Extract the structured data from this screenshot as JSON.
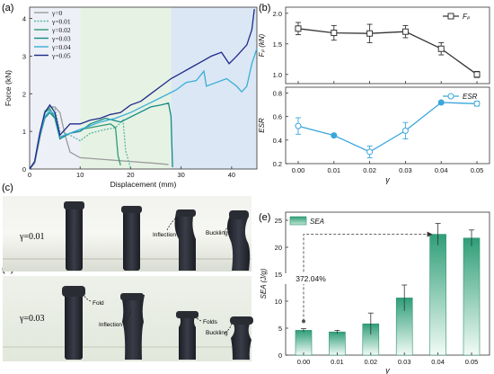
{
  "panel_labels": {
    "a": "(a)",
    "b": "(b)",
    "c": "(c)",
    "d": "(d)",
    "e": "(e)"
  },
  "chart_data": [
    {
      "id": "a",
      "type": "line",
      "xlabel": "Displacement (mm)",
      "ylabel": "Force (kN)",
      "xlim": [
        0,
        45
      ],
      "ylim": [
        0,
        4.3
      ],
      "xticks": [
        0,
        10,
        20,
        30,
        40
      ],
      "yticks": [
        0,
        1,
        2,
        3,
        4
      ],
      "legend_position": "top-left",
      "regions": [
        {
          "x": [
            0,
            10
          ],
          "color": "#eef0f7"
        },
        {
          "x": [
            10,
            28
          ],
          "color": "#e6f2e4"
        },
        {
          "x": [
            28,
            45
          ],
          "color": "#dbe7f4"
        }
      ],
      "series": [
        {
          "name": "γ=0",
          "color": "#9a9a9a",
          "dashed": false,
          "points": [
            [
              0,
              0
            ],
            [
              1,
              0.15
            ],
            [
              2,
              0.8
            ],
            [
              3,
              1.5
            ],
            [
              4,
              1.65
            ],
            [
              5,
              1.65
            ],
            [
              6,
              1.5
            ],
            [
              7,
              0.9
            ],
            [
              8,
              0.45
            ],
            [
              10,
              0.3
            ],
            [
              15,
              0.25
            ],
            [
              20,
              0.2
            ],
            [
              25,
              0.15
            ],
            [
              27.5,
              0.12
            ]
          ]
        },
        {
          "name": "γ=0.01",
          "color": "#5ab8a2",
          "dashed": true,
          "points": [
            [
              0,
              0
            ],
            [
              1,
              0.2
            ],
            [
              2,
              0.9
            ],
            [
              3,
              1.55
            ],
            [
              4,
              1.65
            ],
            [
              5,
              1.6
            ],
            [
              6,
              1.0
            ],
            [
              8,
              0.9
            ],
            [
              10,
              0.75
            ],
            [
              12,
              0.95
            ],
            [
              15,
              1.05
            ],
            [
              17,
              1.1
            ],
            [
              18.5,
              1.3
            ],
            [
              19,
              0.5
            ],
            [
              20,
              0.02
            ]
          ]
        },
        {
          "name": "γ=0.02",
          "color": "#2e9b76",
          "dashed": false,
          "points": [
            [
              0,
              0
            ],
            [
              1,
              0.2
            ],
            [
              2,
              0.9
            ],
            [
              3,
              1.5
            ],
            [
              4,
              1.6
            ],
            [
              5,
              1.35
            ],
            [
              6,
              0.85
            ],
            [
              8,
              0.95
            ],
            [
              10,
              1.05
            ],
            [
              12,
              1.1
            ],
            [
              14,
              1.15
            ],
            [
              16,
              1.2
            ],
            [
              17,
              1.1
            ],
            [
              17.5,
              0.35
            ],
            [
              18,
              0.1
            ]
          ]
        },
        {
          "name": "γ=0.03",
          "color": "#138a86",
          "dashed": false,
          "points": [
            [
              0,
              0
            ],
            [
              1,
              0.2
            ],
            [
              2,
              0.85
            ],
            [
              3,
              1.35
            ],
            [
              4,
              1.5
            ],
            [
              5,
              1.35
            ],
            [
              6,
              0.8
            ],
            [
              8,
              0.95
            ],
            [
              10,
              1.0
            ],
            [
              12,
              1.2
            ],
            [
              15,
              1.35
            ],
            [
              18,
              1.25
            ],
            [
              21,
              1.45
            ],
            [
              24,
              1.65
            ],
            [
              26,
              1.7
            ],
            [
              27.5,
              1.75
            ],
            [
              28,
              1.4
            ],
            [
              28.3,
              0.05
            ]
          ]
        },
        {
          "name": "γ=0.04",
          "color": "#3aaed8",
          "dashed": false,
          "points": [
            [
              0,
              0
            ],
            [
              1,
              0.2
            ],
            [
              2,
              0.9
            ],
            [
              3,
              1.4
            ],
            [
              4,
              1.55
            ],
            [
              5,
              1.45
            ],
            [
              6,
              0.85
            ],
            [
              8,
              0.95
            ],
            [
              10,
              1.05
            ],
            [
              12,
              1.15
            ],
            [
              14,
              1.25
            ],
            [
              17,
              1.35
            ],
            [
              20,
              1.5
            ],
            [
              23,
              1.7
            ],
            [
              26,
              1.9
            ],
            [
              29,
              2.1
            ],
            [
              31,
              2.3
            ],
            [
              33,
              2.35
            ],
            [
              34.5,
              2.6
            ],
            [
              35,
              2.2
            ],
            [
              37,
              2.3
            ],
            [
              39,
              2.4
            ],
            [
              41,
              2.2
            ],
            [
              42,
              2.05
            ],
            [
              43,
              2.2
            ],
            [
              44,
              2.8
            ],
            [
              45,
              3.2
            ]
          ]
        },
        {
          "name": "γ=0.05",
          "color": "#1f2a8a",
          "dashed": false,
          "points": [
            [
              0,
              0
            ],
            [
              1,
              0.2
            ],
            [
              2,
              0.95
            ],
            [
              3,
              1.5
            ],
            [
              4,
              1.7
            ],
            [
              5,
              1.5
            ],
            [
              6,
              0.9
            ],
            [
              8,
              1.2
            ],
            [
              10,
              1.2
            ],
            [
              12,
              1.3
            ],
            [
              14,
              1.35
            ],
            [
              16,
              1.45
            ],
            [
              18,
              1.5
            ],
            [
              20,
              1.7
            ],
            [
              22,
              1.8
            ],
            [
              24,
              2.0
            ],
            [
              26,
              2.2
            ],
            [
              28,
              2.4
            ],
            [
              30,
              2.55
            ],
            [
              32,
              2.7
            ],
            [
              34,
              2.85
            ],
            [
              36,
              3.0
            ],
            [
              38,
              3.1
            ],
            [
              39.5,
              2.8
            ],
            [
              41,
              3.0
            ],
            [
              43,
              3.3
            ],
            [
              44,
              3.7
            ],
            [
              44.5,
              4.25
            ]
          ]
        }
      ]
    },
    {
      "id": "b-top",
      "type": "line",
      "ylabel": "Fₚ (kN)",
      "legend": "Fₚ",
      "categories": [
        "0.00",
        "0.01",
        "0.02",
        "0.03",
        "0.04",
        "0.05"
      ],
      "x": [
        0,
        0.01,
        0.02,
        0.03,
        0.04,
        0.05
      ],
      "values": [
        1.75,
        1.68,
        1.67,
        1.7,
        1.42,
        1.0
      ],
      "errors": [
        0.1,
        0.12,
        0.15,
        0.1,
        0.1,
        0.05
      ],
      "ylim": [
        0.85,
        2.1
      ],
      "yticks": [
        1.0,
        1.5,
        2.0
      ],
      "color": "#333333"
    },
    {
      "id": "b-bottom",
      "type": "line",
      "xlabel": "γ",
      "ylabel": "ESR",
      "legend": "ESR",
      "categories": [
        "0.00",
        "0.01",
        "0.02",
        "0.03",
        "0.04",
        "0.05"
      ],
      "x": [
        0,
        0.01,
        0.02,
        0.03,
        0.04,
        0.05
      ],
      "values": [
        0.52,
        0.44,
        0.3,
        0.48,
        0.72,
        0.71
      ],
      "errors": [
        0.07,
        0.0,
        0.05,
        0.07,
        0.0,
        0.02
      ],
      "filled": [
        false,
        true,
        false,
        false,
        true,
        false
      ],
      "ylim": [
        0.2,
        0.85
      ],
      "yticks": [
        0.2,
        0.4,
        0.6,
        0.8
      ],
      "color": "#3aa6dc"
    },
    {
      "id": "e",
      "type": "bar",
      "xlabel": "γ",
      "ylabel": "SEA (J/g)",
      "legend": "SEA",
      "categories": [
        "0.00",
        "0.01",
        "0.02",
        "0.03",
        "0.04",
        "0.05"
      ],
      "values": [
        4.6,
        4.3,
        5.8,
        10.6,
        22.4,
        21.7
      ],
      "errors": [
        0.3,
        0.3,
        2.0,
        2.4,
        2.0,
        1.5
      ],
      "ylim": [
        0,
        26.5
      ],
      "yticks": [
        0,
        5,
        10,
        15,
        20,
        25
      ],
      "annotation": "372.04%",
      "color_top": "#2f9e78",
      "color_bottom": "#f2fbf6"
    }
  ],
  "photos": {
    "c": {
      "label": "γ=0.01",
      "annotations": [
        "Inflection",
        "Buckling"
      ]
    },
    "d": {
      "label": "γ=0.03",
      "annotations": [
        "Fold",
        "Inflection",
        "Folds",
        "Buckling"
      ]
    }
  }
}
